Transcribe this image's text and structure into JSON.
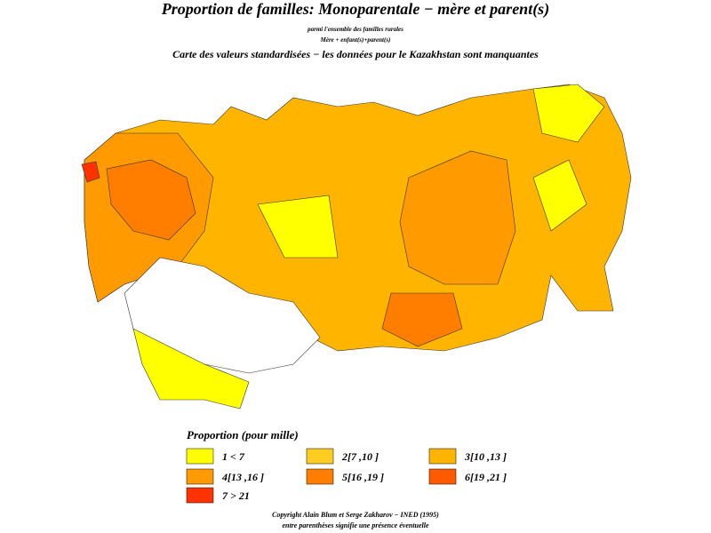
{
  "header": {
    "title": "Proportion de familles: Monoparentale  −  mère et parent(s)",
    "subtitle": "parmi l'ensemble des familles rurales",
    "formula": "Mère + enfant(s)+parent(s)",
    "note": "Carte des valeurs standardisées − les données pour le Kazakhstan sont manquantes"
  },
  "legend": {
    "title": "Proportion (pour mille)",
    "items": [
      {
        "label": "1  <  7",
        "color": "#ffff00"
      },
      {
        "label": "2[7 ,10 ]",
        "color": "#ffcc22"
      },
      {
        "label": "3[10 ,13 ]",
        "color": "#ffb400"
      },
      {
        "label": "4[13 ,16 ]",
        "color": "#ff9a00"
      },
      {
        "label": "5[16 ,19 ]",
        "color": "#ff7e00"
      },
      {
        "label": "6[19 ,21 ]",
        "color": "#ff5a00"
      },
      {
        "label": "7  >  21",
        "color": "#ff3300"
      }
    ]
  },
  "footer": {
    "copyright": "Copyright Alain Blum et Serge Zakharov − INED (1995)",
    "remark": "entre parenthèses signifie une présence éventuelle"
  }
}
